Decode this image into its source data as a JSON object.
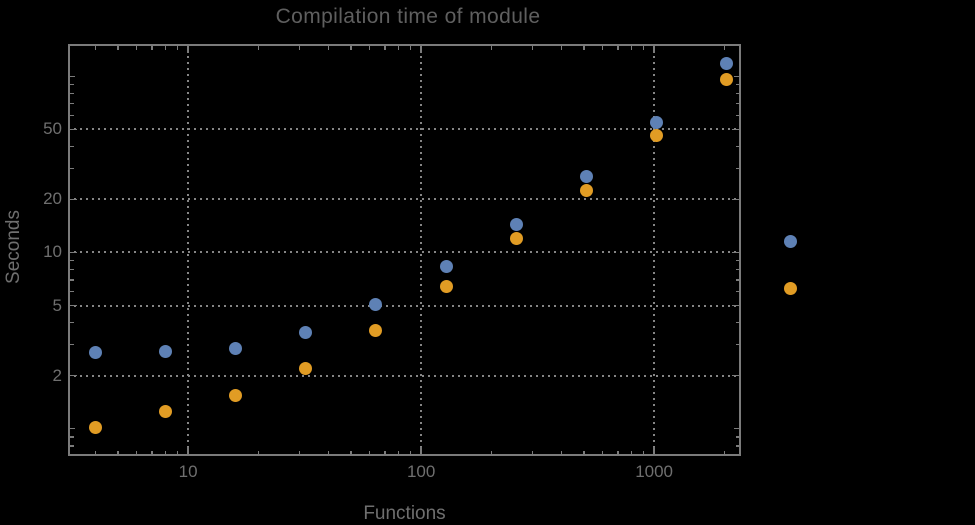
{
  "colors": {
    "background": "#000000",
    "frame": "#7b7b7b",
    "gridlines": "#858585",
    "label_text": "#6f6f6f",
    "title_text": "#5f5f5f",
    "series1_blue": "#5e81b5",
    "series2_orange": "#e19c24"
  },
  "axes": {
    "x": {
      "label": "Functions",
      "scale": "log",
      "range": [
        3.05,
        2360
      ],
      "ticks": {
        "labeled": [
          {
            "v": 10,
            "t": "10"
          },
          {
            "v": 100,
            "t": "100"
          },
          {
            "v": 1000,
            "t": "1000"
          }
        ],
        "unlabeled_major": [],
        "minor": [
          4,
          5,
          6,
          7,
          8,
          9,
          20,
          30,
          40,
          50,
          60,
          70,
          80,
          90,
          200,
          300,
          400,
          500,
          600,
          700,
          800,
          900,
          2000
        ]
      }
    },
    "y": {
      "label": "Seconds",
      "scale": "log",
      "range": [
        0.7,
        152.5
      ],
      "ticks": {
        "labeled": [
          {
            "v": 2,
            "t": "2"
          },
          {
            "v": 5,
            "t": "5"
          },
          {
            "v": 10,
            "t": "10"
          },
          {
            "v": 20,
            "t": "20"
          },
          {
            "v": 50,
            "t": "50"
          }
        ],
        "unlabeled_major": [
          1,
          100
        ],
        "minor": [
          0.8,
          0.9,
          3,
          4,
          6,
          7,
          8,
          9,
          30,
          40,
          60,
          70,
          80,
          90
        ]
      }
    }
  },
  "chart_data": {
    "type": "scatter",
    "title": "Compilation time of module",
    "xlabel": "Functions",
    "ylabel": "Seconds",
    "x_scale": "log",
    "y_scale": "log",
    "grid": "dotted, at labeled ticks only",
    "x": [
      4,
      8,
      16,
      32,
      64,
      128,
      256,
      512,
      1024,
      2048
    ],
    "series": [
      {
        "name": "series-1-blue",
        "color": "#5e81b5",
        "values": [
          2.7,
          2.75,
          2.85,
          3.5,
          5.1,
          8.3,
          14.5,
          27,
          55,
          118
        ]
      },
      {
        "name": "series-2-orange",
        "color": "#e19c24",
        "values": [
          1.02,
          1.25,
          1.55,
          2.2,
          3.6,
          6.4,
          12,
          22.5,
          46,
          96
        ]
      }
    ],
    "legend": {
      "position": "outside-right",
      "labels_visible": false,
      "markers": [
        "#5e81b5",
        "#e19c24"
      ]
    }
  }
}
